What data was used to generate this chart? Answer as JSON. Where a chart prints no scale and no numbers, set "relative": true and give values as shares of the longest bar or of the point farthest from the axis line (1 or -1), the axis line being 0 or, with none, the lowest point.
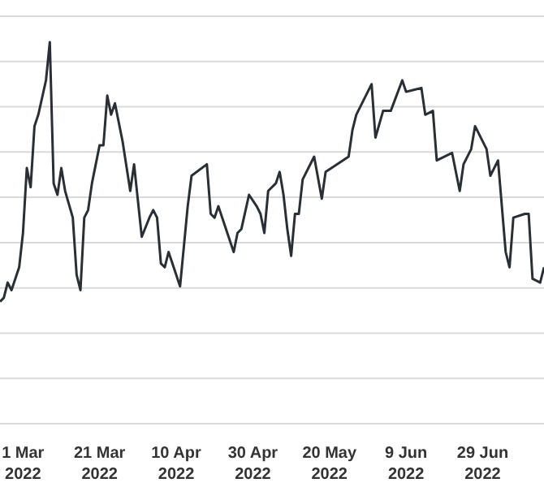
{
  "chart_data": {
    "type": "line",
    "relative": true,
    "grid": "y",
    "legend": false,
    "marker": "none",
    "line_style": "solid",
    "xlim": [
      "2022-02-23",
      "2022-07-15"
    ],
    "xticks": [
      {
        "value": "2022-03-01",
        "label": "1 Mar\n2022"
      },
      {
        "value": "2022-03-21",
        "label": "21 Mar\n2022"
      },
      {
        "value": "2022-04-10",
        "label": "10 Apr\n2022"
      },
      {
        "value": "2022-04-30",
        "label": "30 Apr\n2022"
      },
      {
        "value": "2022-05-20",
        "label": "20 May\n2022"
      },
      {
        "value": "2022-06-09",
        "label": "9 Jun\n2022"
      },
      {
        "value": "2022-06-29",
        "label": "29 Jun\n2022"
      }
    ],
    "x": [
      "2022-02-23",
      "2022-02-24",
      "2022-02-25",
      "2022-02-26",
      "2022-02-28",
      "2022-03-01",
      "2022-03-02",
      "2022-03-03",
      "2022-03-04",
      "2022-03-05",
      "2022-03-07",
      "2022-03-08",
      "2022-03-09",
      "2022-03-10",
      "2022-03-11",
      "2022-03-12",
      "2022-03-14",
      "2022-03-15",
      "2022-03-16",
      "2022-03-17",
      "2022-03-18",
      "2022-03-19",
      "2022-03-21",
      "2022-03-22",
      "2022-03-23",
      "2022-03-24",
      "2022-03-25",
      "2022-03-27",
      "2022-03-29",
      "2022-03-30",
      "2022-04-01",
      "2022-04-03",
      "2022-04-04",
      "2022-04-05",
      "2022-04-06",
      "2022-04-07",
      "2022-04-08",
      "2022-04-09",
      "2022-04-11",
      "2022-04-13",
      "2022-04-14",
      "2022-04-18",
      "2022-04-19",
      "2022-04-20",
      "2022-04-21",
      "2022-04-25",
      "2022-04-26",
      "2022-04-27",
      "2022-04-29",
      "2022-05-01",
      "2022-05-02",
      "2022-05-03",
      "2022-05-04",
      "2022-05-06",
      "2022-05-07",
      "2022-05-08",
      "2022-05-09",
      "2022-05-10",
      "2022-05-11",
      "2022-05-12",
      "2022-05-13",
      "2022-05-16",
      "2022-05-18",
      "2022-05-19",
      "2022-05-25",
      "2022-05-26",
      "2022-05-27",
      "2022-05-31",
      "2022-06-01",
      "2022-06-03",
      "2022-06-05",
      "2022-06-08",
      "2022-06-09",
      "2022-06-13",
      "2022-06-14",
      "2022-06-16",
      "2022-06-17",
      "2022-06-21",
      "2022-06-23",
      "2022-06-24",
      "2022-06-26",
      "2022-06-27",
      "2022-06-30",
      "2022-07-01",
      "2022-07-03",
      "2022-07-05",
      "2022-07-06",
      "2022-07-07",
      "2022-07-10",
      "2022-07-11",
      "2022-07-12",
      "2022-07-14",
      "2022-07-15"
    ],
    "series": [
      {
        "color": "#2a2f35",
        "values": [
          0.32,
          0.33,
          0.37,
          0.35,
          0.41,
          0.5,
          0.67,
          0.62,
          0.78,
          0.81,
          0.9,
          1.0,
          0.63,
          0.6,
          0.67,
          0.61,
          0.54,
          0.39,
          0.35,
          0.54,
          0.56,
          0.63,
          0.73,
          0.73,
          0.86,
          0.81,
          0.84,
          0.74,
          0.61,
          0.68,
          0.49,
          0.54,
          0.56,
          0.54,
          0.42,
          0.41,
          0.45,
          0.42,
          0.36,
          0.57,
          0.65,
          0.68,
          0.55,
          0.54,
          0.57,
          0.45,
          0.5,
          0.51,
          0.6,
          0.57,
          0.55,
          0.5,
          0.61,
          0.63,
          0.66,
          0.6,
          0.51,
          0.44,
          0.55,
          0.55,
          0.64,
          0.7,
          0.59,
          0.66,
          0.7,
          0.77,
          0.81,
          0.89,
          0.75,
          0.82,
          0.82,
          0.9,
          0.87,
          0.88,
          0.81,
          0.82,
          0.69,
          0.71,
          0.61,
          0.68,
          0.72,
          0.78,
          0.72,
          0.65,
          0.69,
          0.45,
          0.41,
          0.54,
          0.55,
          0.55,
          0.38,
          0.37,
          0.41
        ]
      }
    ]
  }
}
